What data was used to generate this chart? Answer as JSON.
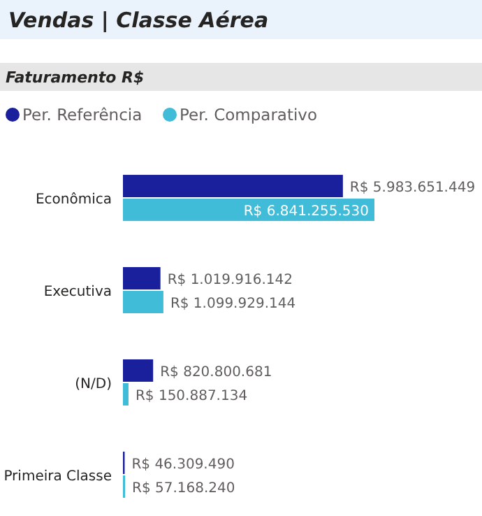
{
  "chart_data": {
    "type": "bar",
    "orientation": "horizontal",
    "title": "Vendas | Classe Aérea",
    "subtitle": "Faturamento R$",
    "categories": [
      "Econômica",
      "Executiva",
      "(N/D)",
      "Primeira Classe"
    ],
    "legend": "top left",
    "series": [
      {
        "name": "Per. Referência",
        "color": "#1a1f9c",
        "values": [
          5983651449,
          1019916142,
          820800681,
          46309490
        ],
        "value_labels": [
          "R$ 5.983.651.449",
          "R$ 1.019.916.142",
          "R$ 820.800.681",
          "R$ 46.309.490"
        ]
      },
      {
        "name": "Per. Comparativo",
        "color": "#40bcd8",
        "values": [
          6841255530,
          1099929144,
          150887134,
          57168240
        ],
        "value_labels": [
          "R$ 6.841.255.530",
          "R$ 1.099.929.144",
          "R$ 150.887.134",
          "R$ 57.168.240"
        ]
      }
    ]
  }
}
